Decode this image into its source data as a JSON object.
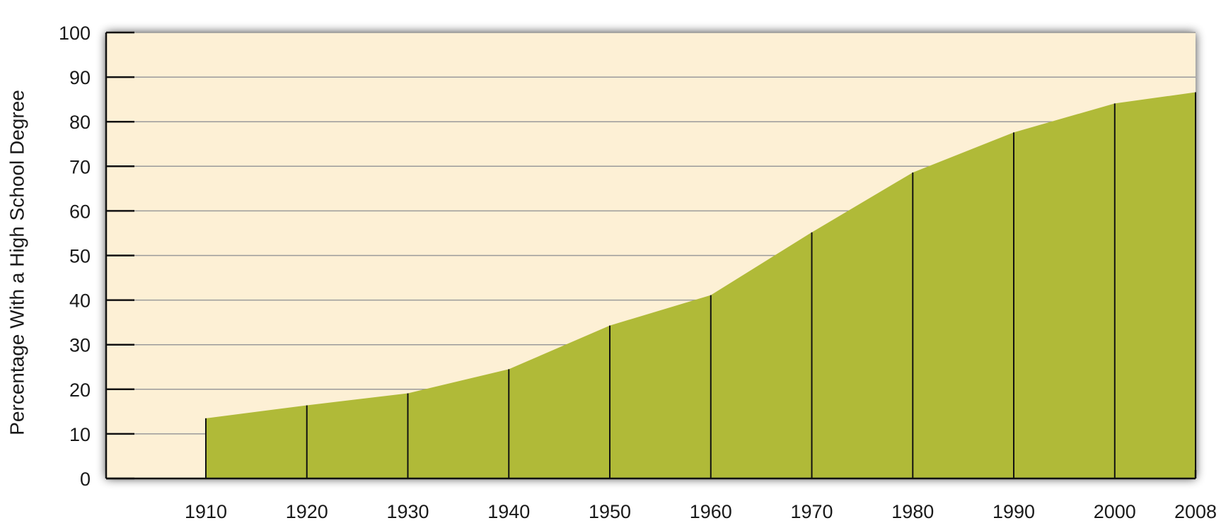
{
  "chart_data": {
    "type": "area",
    "title": "",
    "xlabel": "",
    "ylabel": "Percentage With a High School Degree",
    "x": [
      1910,
      1920,
      1930,
      1940,
      1950,
      1960,
      1970,
      1980,
      1990,
      2000,
      2008
    ],
    "x_tick_labels": [
      "1910",
      "1920",
      "1930",
      "1940",
      "1950",
      "1960",
      "1970",
      "1980",
      "1990",
      "2000",
      "2008"
    ],
    "series": [
      {
        "values": [
          13.5,
          16.4,
          19.1,
          24.5,
          34.3,
          41.1,
          55.2,
          68.6,
          77.6,
          84.1,
          86.6
        ]
      }
    ],
    "ylim": [
      0,
      100
    ],
    "y_ticks": [
      0,
      10,
      20,
      30,
      40,
      50,
      60,
      70,
      80,
      90,
      100
    ],
    "y_tick_labels": [
      "0",
      "10",
      "20",
      "30",
      "40",
      "50",
      "60",
      "70",
      "80",
      "90",
      "100"
    ],
    "grid": true,
    "legend": "none",
    "colors": {
      "plot_background": "#fdf0d5",
      "area_fill": "#b0ba38",
      "gridline": "#9a9a9a",
      "axis": "#111111",
      "drop_line": "#111111"
    }
  }
}
